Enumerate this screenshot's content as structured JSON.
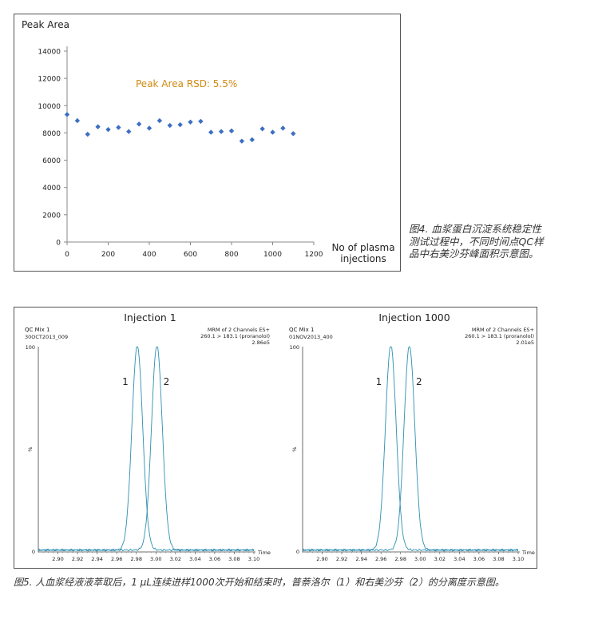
{
  "figure4": {
    "caption": "图4. 血浆蛋白沉淀系统稳定性测试过程中，不同时间点QC样品中右美沙芬峰面积示意图。"
  },
  "figure5": {
    "caption": "图5. 人血浆经液液萃取后，1 μL连续进样1000次开始和结束时，普萘洛尔（1）和右美沙芬（2）的分离度示意图。"
  },
  "chart_data": [
    {
      "type": "scatter",
      "title": "Peak Area",
      "xlabel": "No of plasma injections",
      "ylabel": "",
      "annotation": "Peak Area RSD: 5.5%",
      "annotation_color": "#d08a10",
      "marker_color": "#3d6fc4",
      "xlim": [
        0,
        1200
      ],
      "ylim": [
        0,
        14000
      ],
      "xticks": [
        0,
        200,
        400,
        600,
        800,
        1000,
        1200
      ],
      "yticks": [
        0,
        2000,
        4000,
        6000,
        8000,
        10000,
        12000,
        14000
      ],
      "grid": false,
      "points": [
        {
          "x": 0,
          "y": 9350
        },
        {
          "x": 50,
          "y": 8900
        },
        {
          "x": 100,
          "y": 7900
        },
        {
          "x": 150,
          "y": 8450
        },
        {
          "x": 200,
          "y": 8250
        },
        {
          "x": 250,
          "y": 8400
        },
        {
          "x": 300,
          "y": 8100
        },
        {
          "x": 350,
          "y": 8650
        },
        {
          "x": 400,
          "y": 8350
        },
        {
          "x": 450,
          "y": 8900
        },
        {
          "x": 500,
          "y": 8550
        },
        {
          "x": 550,
          "y": 8600
        },
        {
          "x": 600,
          "y": 8800
        },
        {
          "x": 650,
          "y": 8850
        },
        {
          "x": 700,
          "y": 8050
        },
        {
          "x": 750,
          "y": 8100
        },
        {
          "x": 800,
          "y": 8150
        },
        {
          "x": 850,
          "y": 7400
        },
        {
          "x": 900,
          "y": 7500
        },
        {
          "x": 950,
          "y": 8300
        },
        {
          "x": 1000,
          "y": 8050
        },
        {
          "x": 1050,
          "y": 8350
        },
        {
          "x": 1100,
          "y": 7950
        }
      ]
    },
    {
      "type": "line",
      "title": "Injection 1",
      "sample": "QC Mix 1",
      "file": "30OCT2013_009",
      "info_line1": "MRM of 2 Channels ES+",
      "info_line2": "260.1 > 183.1 (proranolol)",
      "info_line3": "2.86e5",
      "ylabel": "%",
      "xlabel": "Time",
      "y_top_label": "100",
      "y_zero_label": "0",
      "xlim": [
        2.88,
        3.1
      ],
      "ylim": [
        0,
        100
      ],
      "xticks": [
        "2.90",
        "2.92",
        "2.94",
        "2.96",
        "2.98",
        "3.00",
        "3.02",
        "3.04",
        "3.06",
        "3.08",
        "3.10"
      ],
      "line_color": "#2c8fb0",
      "peaks": [
        {
          "label": "1",
          "center": 2.981,
          "height": 100,
          "sigma": 0.0055
        },
        {
          "label": "2",
          "center": 3.001,
          "height": 100,
          "sigma": 0.0055
        }
      ]
    },
    {
      "type": "line",
      "title": "Injection 1000",
      "sample": "QC Mix 1",
      "file": "01NOV2013_400",
      "info_line1": "MRM of 2 Channels ES+",
      "info_line2": "260.1 > 183.1 (proranolol)",
      "info_line3": "2.01e5",
      "ylabel": "%",
      "xlabel": "Time",
      "y_top_label": "100",
      "y_zero_label": "0",
      "xlim": [
        2.88,
        3.1
      ],
      "ylim": [
        0,
        100
      ],
      "xticks": [
        "2.90",
        "2.92",
        "2.94",
        "2.96",
        "2.98",
        "3.00",
        "3.02",
        "3.04",
        "3.06",
        "3.08",
        "3.10"
      ],
      "line_color": "#2c8fb0",
      "peaks": [
        {
          "label": "1",
          "center": 2.97,
          "height": 100,
          "sigma": 0.0055
        },
        {
          "label": "2",
          "center": 2.989,
          "height": 100,
          "sigma": 0.0055
        }
      ]
    }
  ]
}
